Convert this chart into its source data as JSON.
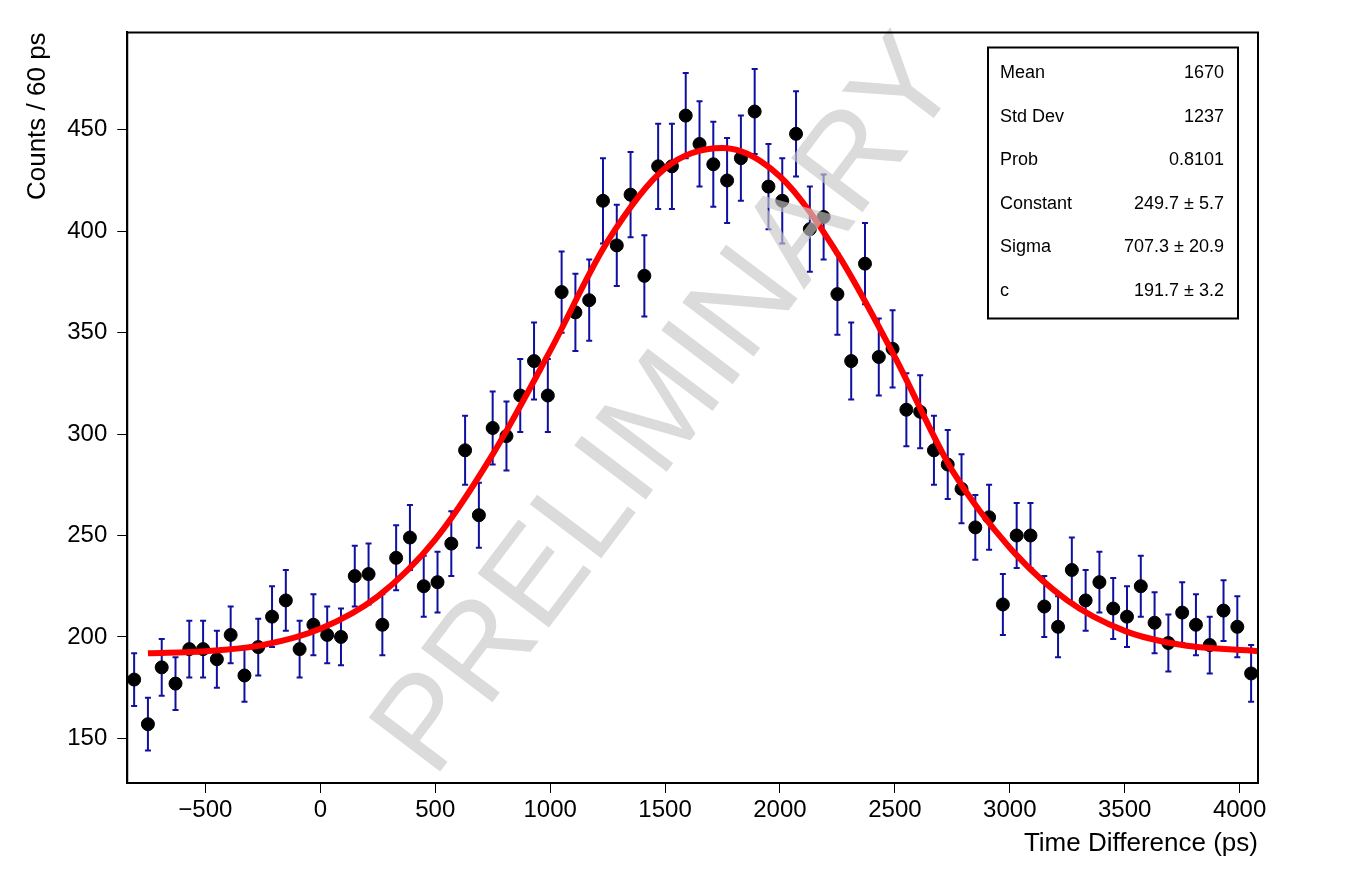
{
  "chart_data": {
    "type": "scatter",
    "xlabel": "Time Difference (ps)",
    "ylabel": "Counts / 60 ps",
    "xlim": [
      -840,
      4080
    ],
    "xticks": [
      -500,
      0,
      500,
      1000,
      1500,
      2000,
      2500,
      3000,
      3500,
      4000
    ],
    "ylim": [
      128,
      498
    ],
    "yticks": [
      150,
      200,
      250,
      300,
      350,
      400,
      450
    ],
    "grid": false,
    "legend": false,
    "marker": "circle",
    "annotations": [
      "Mean\t1670",
      "Std Dev\t1237",
      "Prob\t0.8101",
      "Constant\t249.7 ± 5.7",
      "Sigma\t707.3 ± 20.9",
      "c\t191.7 ± 3.2",
      "PRELIMINARY"
    ],
    "series": [
      {
        "color": "#000000",
        "x": [
          -810,
          -750,
          -690,
          -630,
          -570,
          -510,
          -450,
          -390,
          -330,
          -270,
          -210,
          -150,
          -90,
          -30,
          30,
          90,
          150,
          210,
          270,
          330,
          390,
          450,
          510,
          570,
          630,
          690,
          750,
          810,
          870,
          930,
          990,
          1050,
          1110,
          1170,
          1230,
          1290,
          1350,
          1410,
          1470,
          1530,
          1590,
          1650,
          1710,
          1770,
          1830,
          1890,
          1950,
          2010,
          2070,
          2130,
          2190,
          2250,
          2310,
          2370,
          2430,
          2490,
          2550,
          2610,
          2670,
          2730,
          2790,
          2850,
          2910,
          2970,
          3030,
          3090,
          3150,
          3210,
          3270,
          3330,
          3390,
          3450,
          3510,
          3570,
          3630,
          3690,
          3750,
          3810,
          3870,
          3930,
          3990,
          4050
        ],
        "values": [
          179,
          157,
          185,
          177,
          194,
          194,
          189,
          201,
          181,
          195,
          210,
          218,
          194,
          206,
          201,
          200,
          230,
          231,
          206,
          239,
          249,
          225,
          227,
          246,
          292,
          260,
          303,
          299,
          319,
          336,
          319,
          370,
          360,
          366,
          415,
          393,
          418,
          378,
          432,
          432,
          457,
          443,
          433,
          425,
          436,
          459,
          422,
          415,
          448,
          401,
          407,
          369,
          336,
          384,
          338,
          342,
          312,
          311,
          292,
          285,
          273,
          254,
          259,
          216,
          250,
          250,
          215,
          205,
          233,
          218,
          227,
          214,
          210,
          225,
          207,
          197,
          212,
          206,
          196,
          213,
          205,
          182
        ],
        "errors": [
          13,
          13,
          14,
          13,
          14,
          14,
          14,
          14,
          13,
          14,
          15,
          15,
          14,
          15,
          14,
          14,
          15,
          15,
          15,
          16,
          16,
          15,
          15,
          16,
          17,
          16,
          18,
          17,
          18,
          19,
          18,
          20,
          19,
          20,
          21,
          20,
          21,
          20,
          21,
          21,
          21,
          21,
          21,
          21,
          21,
          21,
          21,
          21,
          21,
          21,
          21,
          20,
          19,
          20,
          19,
          19,
          18,
          18,
          17,
          17,
          17,
          16,
          16,
          15,
          16,
          16,
          15,
          15,
          16,
          15,
          15,
          15,
          15,
          15,
          15,
          14,
          15,
          15,
          14,
          15,
          15,
          14
        ]
      },
      {
        "type": "line",
        "color": "#ff0000",
        "marker": "none",
        "line_style": "solid",
        "x": [
          -750,
          -500,
          -250,
          0,
          250,
          500,
          750,
          1000,
          1250,
          1500,
          1750,
          2000,
          2250,
          2500,
          2750,
          3000,
          3250,
          3500,
          3750,
          4080
        ],
        "values": [
          192,
          193,
          196,
          204,
          220,
          248,
          290,
          341,
          395,
          431,
          441,
          427,
          389,
          338,
          282,
          244,
          218,
          203,
          196,
          193
        ]
      }
    ]
  }
}
